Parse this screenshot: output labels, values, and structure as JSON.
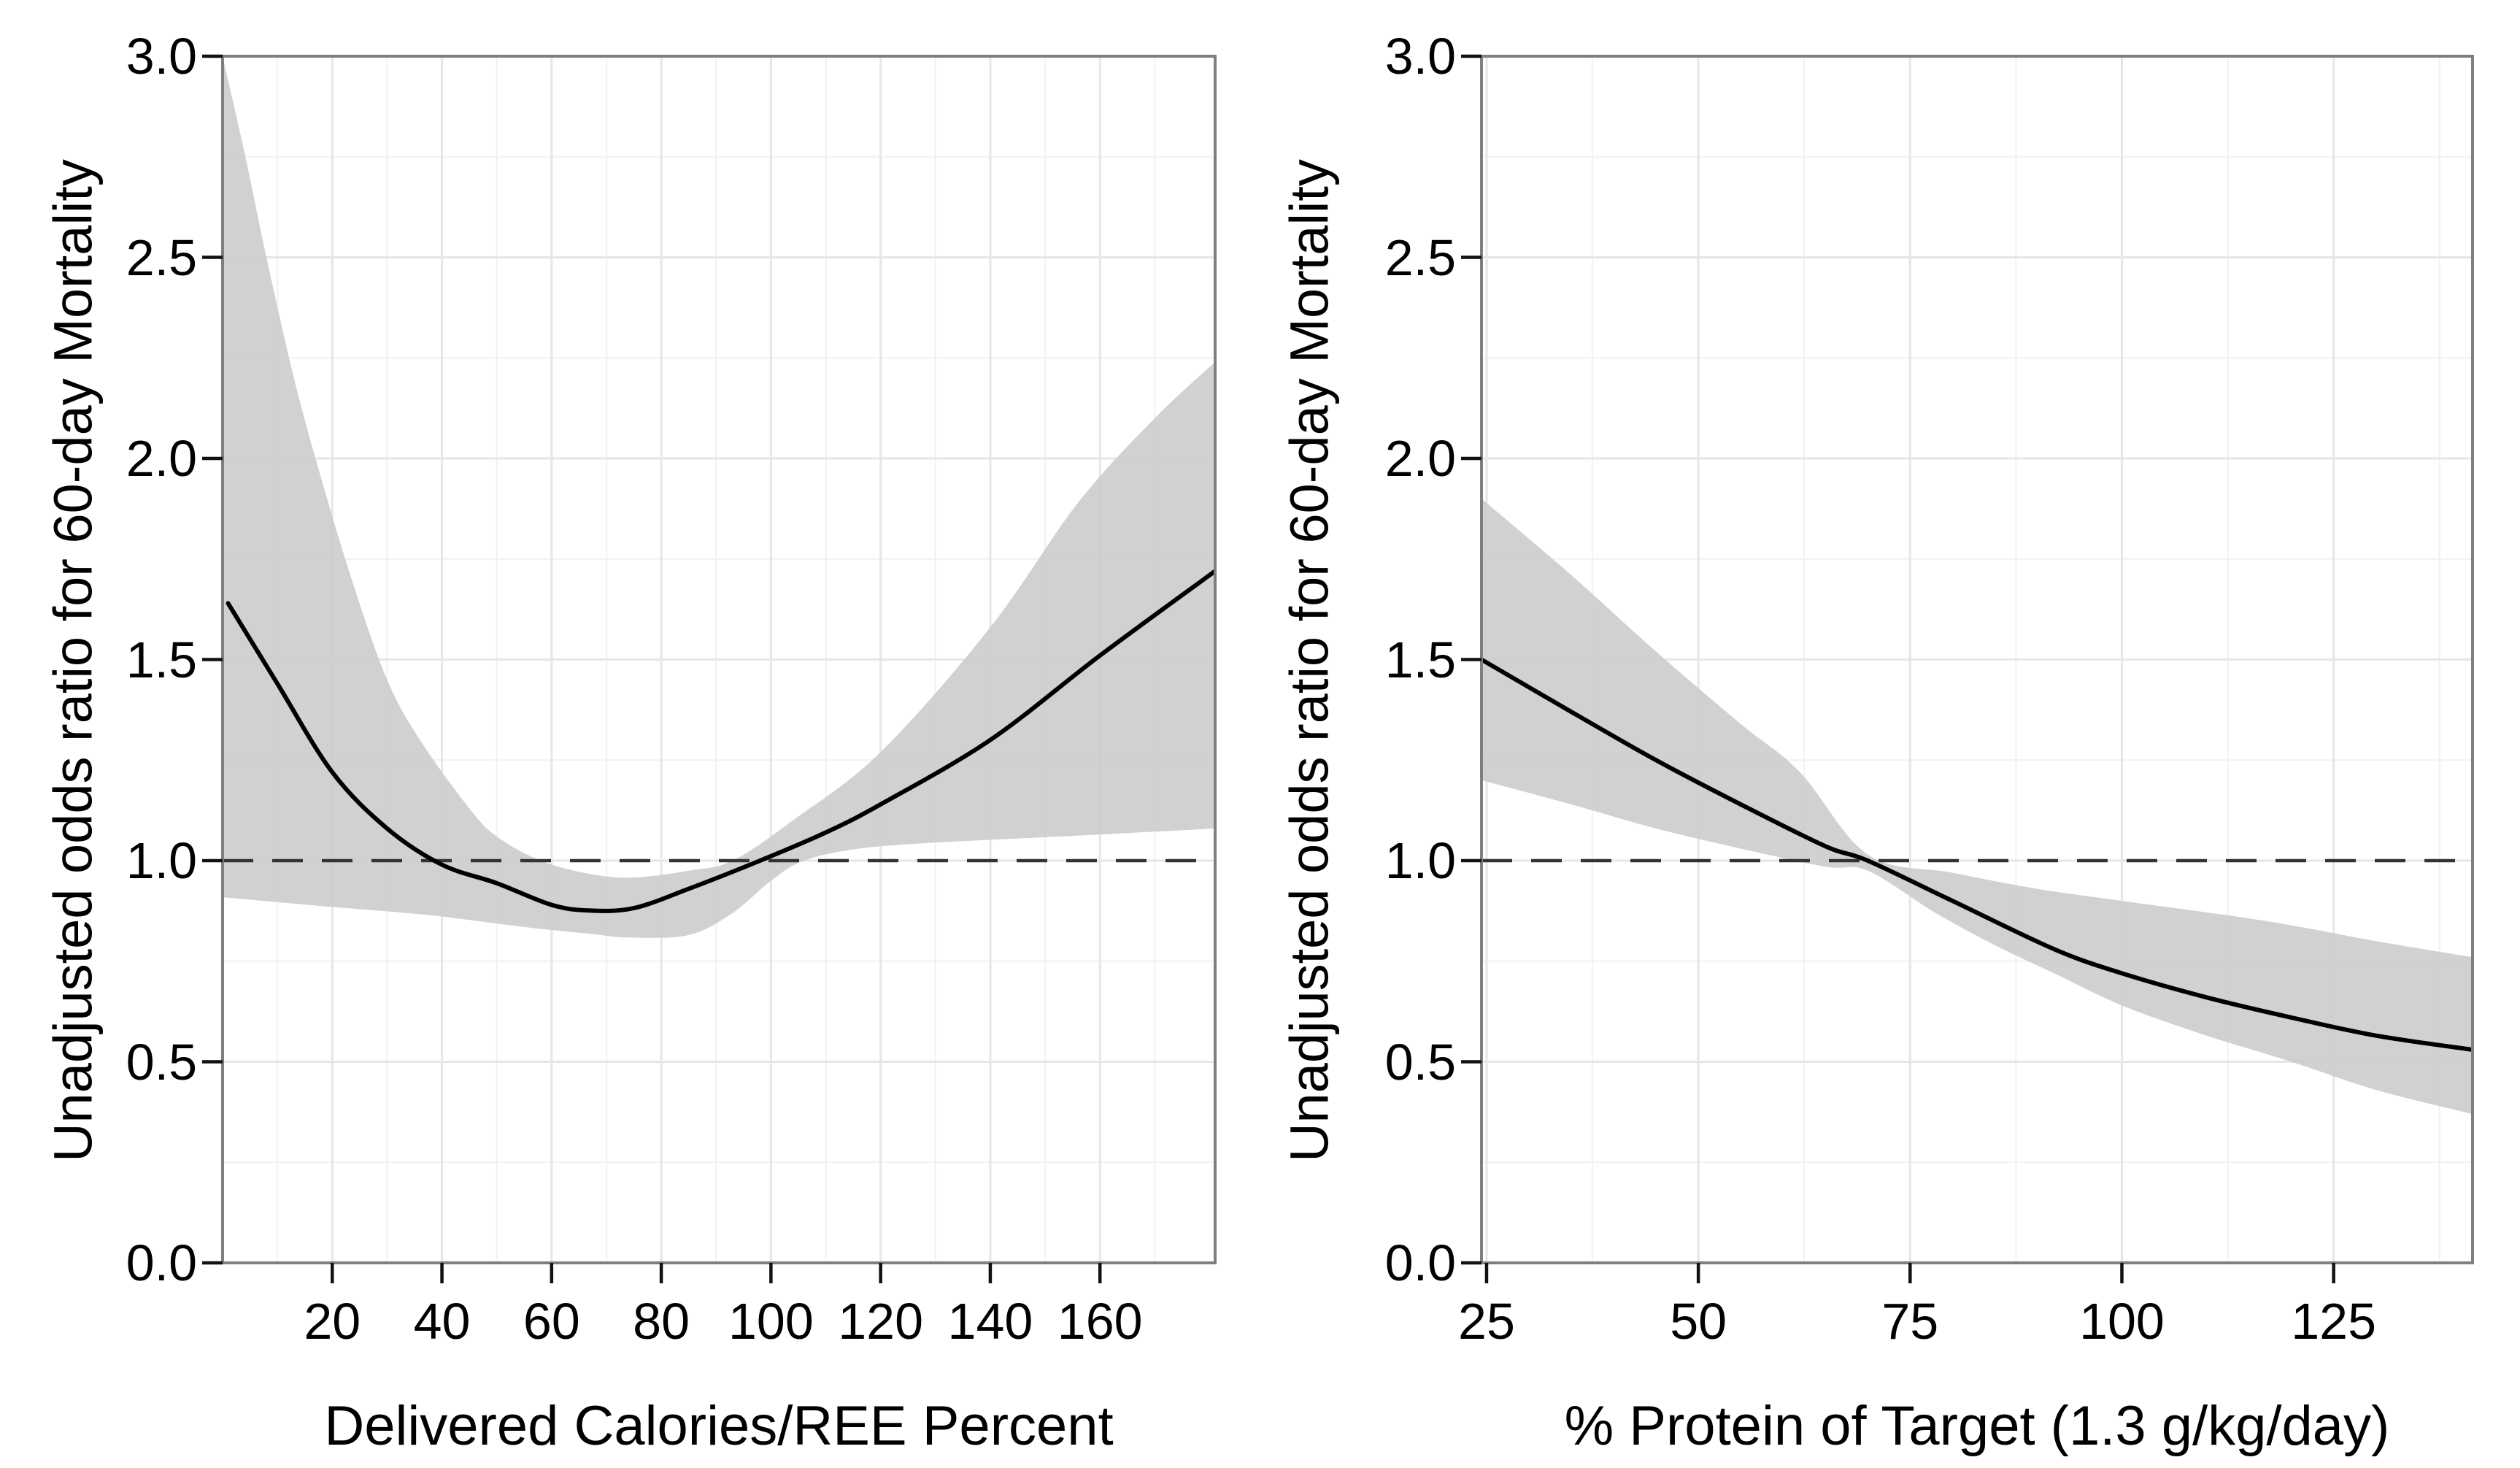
{
  "figure": {
    "background": "#ffffff",
    "band_color": "#cccccc",
    "curve_color": "#000000",
    "grid_major_color": "#e6e6e6",
    "grid_minor_color": "#f2f2f2",
    "border_color": "#7f7f7f",
    "reference_line": {
      "y": 1.0,
      "style": "dashed",
      "color": "#333333"
    }
  },
  "chart_data": [
    {
      "type": "line",
      "panel": "left",
      "title": "",
      "xlabel": "Delivered Calories/REE Percent",
      "ylabel": "Unadjusted odds ratio for 60-day Mortality",
      "xlim": [
        0,
        181
      ],
      "ylim": [
        0,
        3
      ],
      "grid": true,
      "legend": "none",
      "x_ticks": {
        "values": [
          20,
          40,
          60,
          80,
          100,
          120,
          140,
          160
        ],
        "labels": [
          "20",
          "40",
          "60",
          "80",
          "100",
          "120",
          "140",
          "160"
        ]
      },
      "y_ticks": {
        "values": [
          3.0,
          2.5,
          2.0,
          1.5,
          1.0,
          0.5,
          0.0
        ],
        "labels": [
          "3.0",
          "2.5",
          "2.0",
          "1.5",
          "1.0",
          "0.5",
          "0.0"
        ]
      },
      "reference_line_y": 1.0,
      "series": [
        {
          "name": "unadjusted odds ratio",
          "x": [
            1,
            10,
            20,
            30,
            40,
            50,
            60,
            67,
            75,
            85,
            98,
            110,
            120,
            140,
            160,
            181
          ],
          "y": [
            1.64,
            1.44,
            1.22,
            1.08,
            0.99,
            0.944,
            0.89,
            0.876,
            0.882,
            0.93,
            1.0,
            1.07,
            1.14,
            1.3,
            1.51,
            1.72
          ]
        }
      ],
      "confidence_band": {
        "x_upper": [
          0,
          4,
          8,
          13,
          18,
          24,
          30,
          36,
          45,
          50,
          58,
          67,
          75,
          85,
          93,
          104,
          120,
          140,
          156,
          170,
          181
        ],
        "upper": [
          3.0,
          2.76,
          2.5,
          2.2,
          1.95,
          1.68,
          1.45,
          1.3,
          1.13,
          1.06,
          1.0,
          0.967,
          0.958,
          0.975,
          1.0,
          1.1,
          1.27,
          1.58,
          1.89,
          2.1,
          2.24
        ],
        "x_lower": [
          0,
          20,
          38,
          55,
          67,
          74,
          85,
          93,
          100,
          106,
          116,
          130,
          145,
          160,
          170,
          181
        ],
        "lower": [
          0.909,
          0.885,
          0.864,
          0.835,
          0.818,
          0.809,
          0.815,
          0.87,
          0.95,
          1.0,
          1.03,
          1.045,
          1.055,
          1.065,
          1.072,
          1.08
        ]
      }
    },
    {
      "type": "line",
      "panel": "right",
      "title": "",
      "xlabel": "% Protein of Target (1.3 g/kg/day)",
      "ylabel": "Unadjusted odds ratio for 60-day Mortality",
      "xlim": [
        24.4,
        141.4
      ],
      "ylim": [
        0,
        3
      ],
      "grid": true,
      "legend": "none",
      "x_ticks": {
        "values": [
          25,
          50,
          75,
          100,
          125
        ],
        "labels": [
          "25",
          "50",
          "75",
          "100",
          "125"
        ]
      },
      "y_ticks": {
        "values": [
          3.0,
          2.5,
          2.0,
          1.5,
          1.0,
          0.5,
          0.0
        ],
        "labels": [
          "3.0",
          "2.5",
          "2.0",
          "1.5",
          "1.0",
          "0.5",
          "0.0"
        ]
      },
      "reference_line_y": 1.0,
      "series": [
        {
          "name": "unadjusted odds ratio",
          "x": [
            24.4,
            35,
            45,
            55,
            65,
            70,
            80,
            92,
            100,
            110,
            120,
            130,
            141.4
          ],
          "y": [
            1.5,
            1.37,
            1.25,
            1.14,
            1.036,
            1.0,
            0.9,
            0.78,
            0.72,
            0.66,
            0.61,
            0.565,
            0.53
          ]
        }
      ],
      "confidence_band": {
        "x_upper": [
          24.4,
          35,
          45,
          55,
          62,
          70,
          80,
          90,
          100,
          117,
          130,
          141.4
        ],
        "upper": [
          1.9,
          1.71,
          1.52,
          1.34,
          1.22,
          1.015,
          0.97,
          0.93,
          0.9,
          0.85,
          0.8,
          0.76
        ],
        "x_lower": [
          24.4,
          35,
          45,
          55,
          65,
          70,
          78,
          85,
          92,
          100,
          110,
          120,
          130,
          141.4
        ],
        "lower": [
          1.2,
          1.14,
          1.08,
          1.03,
          0.985,
          0.975,
          0.87,
          0.79,
          0.72,
          0.64,
          0.565,
          0.5,
          0.43,
          0.37
        ]
      }
    }
  ]
}
